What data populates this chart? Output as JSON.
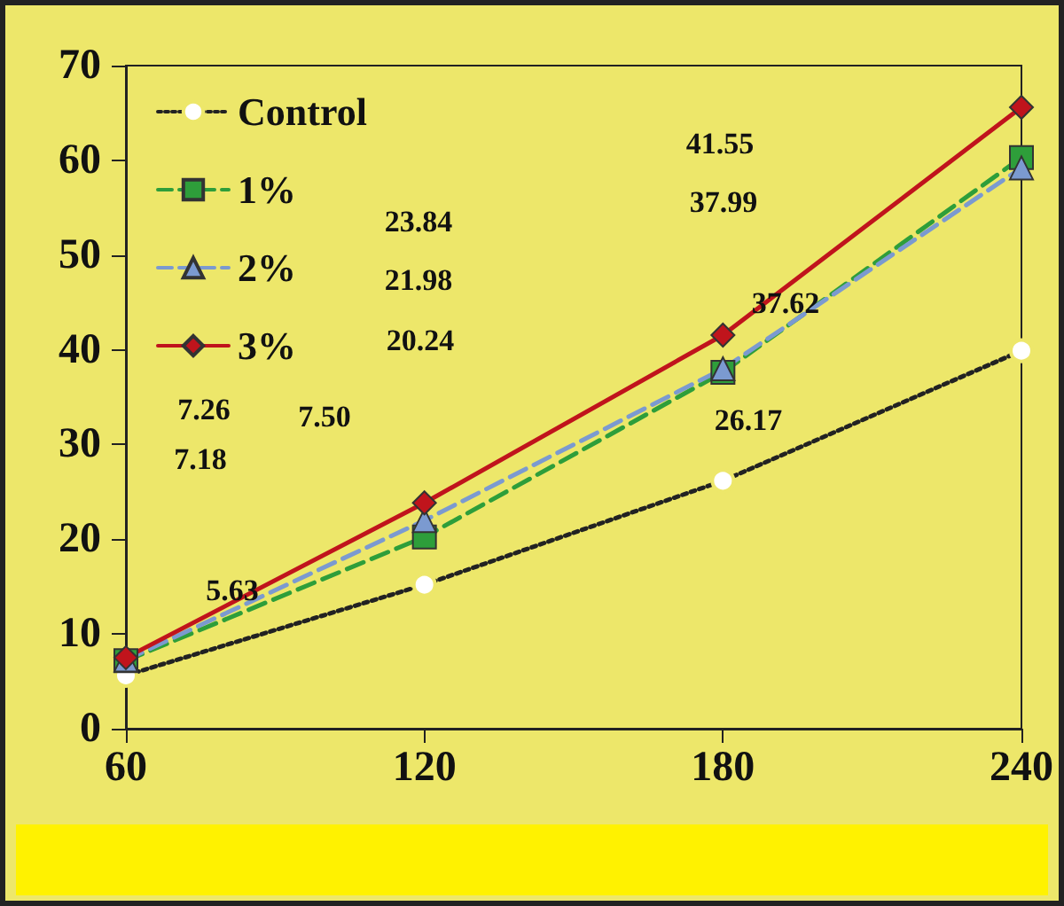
{
  "chart_data": {
    "type": "line",
    "x": [
      60,
      120,
      180,
      240
    ],
    "xlim": [
      60,
      240
    ],
    "xticks": [
      60,
      120,
      180,
      240
    ],
    "ylim": [
      0,
      70
    ],
    "yticks": [
      0,
      10,
      20,
      30,
      40,
      50,
      60,
      70
    ],
    "grid": false,
    "legend": "top left",
    "series": [
      {
        "name": "Control",
        "color": "#222222",
        "marker": "circle",
        "line_style": "dotted",
        "values": [
          5.63,
          15.2,
          26.17,
          39.9
        ]
      },
      {
        "name": "1%",
        "color": "#2e9e3a",
        "marker": "square",
        "line_style": "dashed",
        "values": [
          7.18,
          20.24,
          37.62,
          60.3
        ]
      },
      {
        "name": "2%",
        "color": "#7b9ad0",
        "marker": "triangle",
        "line_style": "dashed",
        "values": [
          7.26,
          21.98,
          37.99,
          59.2
        ]
      },
      {
        "name": "3%",
        "color": "#c0141c",
        "marker": "diamond",
        "line_style": "solid",
        "values": [
          7.5,
          23.84,
          41.55,
          65.6
        ]
      }
    ],
    "annotations": [
      "7.50",
      "7.26",
      "7.18",
      "5.63",
      "23.84",
      "21.98",
      "20.24",
      "41.55",
      "37.99",
      "37.62",
      "26.17"
    ]
  }
}
